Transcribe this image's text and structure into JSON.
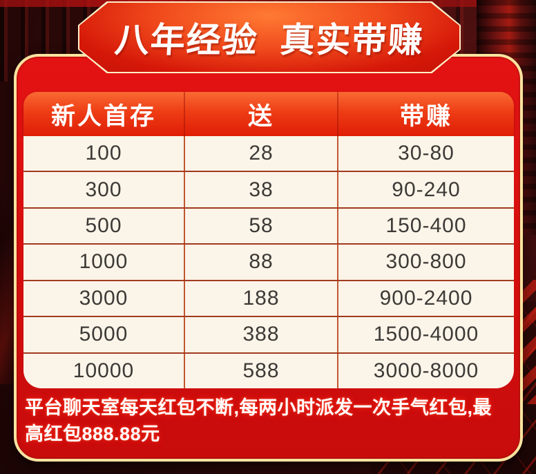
{
  "banner": {
    "title": "八年经验  真实带赚"
  },
  "table": {
    "headers": [
      "新人首存",
      "送",
      "带赚"
    ],
    "rows": [
      [
        "100",
        "28",
        "30-80"
      ],
      [
        "300",
        "38",
        "90-240"
      ],
      [
        "500",
        "58",
        "150-400"
      ],
      [
        "1000",
        "88",
        "300-800"
      ],
      [
        "3000",
        "188",
        "900-2400"
      ],
      [
        "5000",
        "388",
        "1500-4000"
      ],
      [
        "10000",
        "588",
        "3000-8000"
      ]
    ]
  },
  "footer": {
    "note": "平台聊天室每天红包不断,每两小时派发一次手气红包,最高红包888.88元"
  },
  "colors": {
    "background_dark": "#260707",
    "panel_red": "#d40e0e",
    "panel_border_gold": "#f9e3a0",
    "banner_border_cream": "#fdeec6",
    "banner_fill_orange_red": "#f04a1c",
    "header_gradient_top": "#f96a33",
    "header_gradient_bottom": "#df1d06",
    "row_background_cream": "#fbf4e9",
    "row_divider_red": "#a23a1e",
    "cell_text": "#3c3a36",
    "text_white": "#ffffff"
  }
}
